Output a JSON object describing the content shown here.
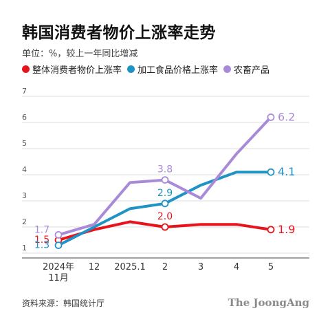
{
  "header": {
    "title": "韩国消费者物价上涨率走势",
    "unit": "单位：%，较上一年同比增减"
  },
  "legend": [
    {
      "label": "整体消费者物价上涨率",
      "color": "#e8141c"
    },
    {
      "label": "加工食品价格上涨率",
      "color": "#1f93c4"
    },
    {
      "label": "农畜产品",
      "color": "#a98ad8"
    }
  ],
  "chart_data": {
    "type": "line",
    "title": "韩国消费者物价上涨率走势",
    "ylabel": "单位：%，较上一年同比增减",
    "xlabel": "",
    "ylim": [
      1,
      7
    ],
    "yticks": [
      1,
      2,
      3,
      4,
      5,
      6,
      7
    ],
    "grid": true,
    "legend_position": "top",
    "categories": [
      "2024年 11月",
      "12",
      "2025.1",
      "2",
      "3",
      "4",
      "5"
    ],
    "series": [
      {
        "name": "整体消费者物价上涨率",
        "color": "#e8141c",
        "values": [
          1.5,
          1.9,
          2.2,
          2.0,
          2.1,
          2.1,
          1.9
        ],
        "labels": [
          {
            "index": 0,
            "text": "1.5"
          },
          {
            "index": 3,
            "text": "2.0"
          },
          {
            "index": 6,
            "text": "1.9"
          }
        ]
      },
      {
        "name": "加工食品价格上涨率",
        "color": "#1f93c4",
        "values": [
          1.3,
          2.0,
          2.7,
          2.9,
          3.6,
          4.1,
          4.1
        ],
        "labels": [
          {
            "index": 0,
            "text": "1.3"
          },
          {
            "index": 3,
            "text": "2.9"
          },
          {
            "index": 6,
            "text": "4.1"
          }
        ]
      },
      {
        "name": "农畜产品",
        "color": "#a98ad8",
        "values": [
          1.7,
          2.1,
          3.7,
          3.8,
          3.1,
          4.8,
          6.2
        ],
        "labels": [
          {
            "index": 0,
            "text": "1.7"
          },
          {
            "index": 3,
            "text": "3.8"
          },
          {
            "index": 6,
            "text": "6.2"
          }
        ]
      }
    ]
  },
  "footer": {
    "source": "资料来源：韩国统计厅",
    "brand": "The JoongAng"
  }
}
